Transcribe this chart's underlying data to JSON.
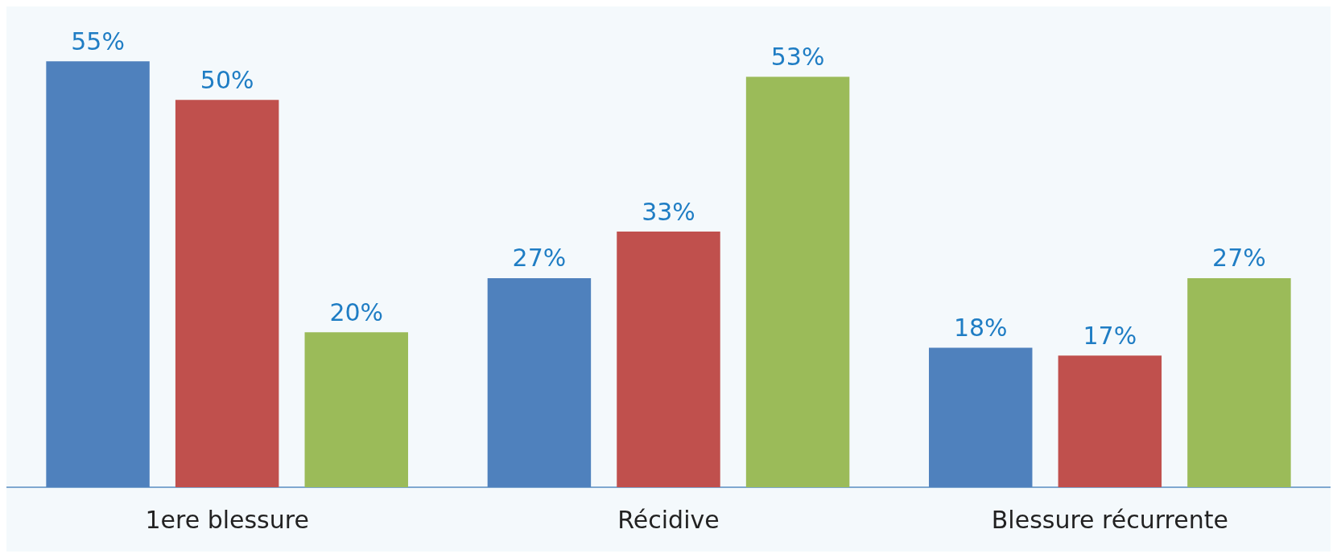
{
  "chart_data": {
    "type": "bar",
    "categories": [
      "1ere blessure",
      "Récidive",
      "Blessure récurrente"
    ],
    "series": [
      {
        "color": "#4f81bd",
        "values": [
          55,
          27,
          18
        ],
        "value_labels": [
          "55%",
          "27%",
          "18%"
        ]
      },
      {
        "color": "#c0504d",
        "values": [
          50,
          33,
          17
        ],
        "value_labels": [
          "50%",
          "33%",
          "17%"
        ]
      },
      {
        "color": "#9bbb59",
        "values": [
          20,
          53,
          27
        ],
        "value_labels": [
          "20%",
          "53%",
          "27%"
        ]
      }
    ],
    "grid": false
  }
}
